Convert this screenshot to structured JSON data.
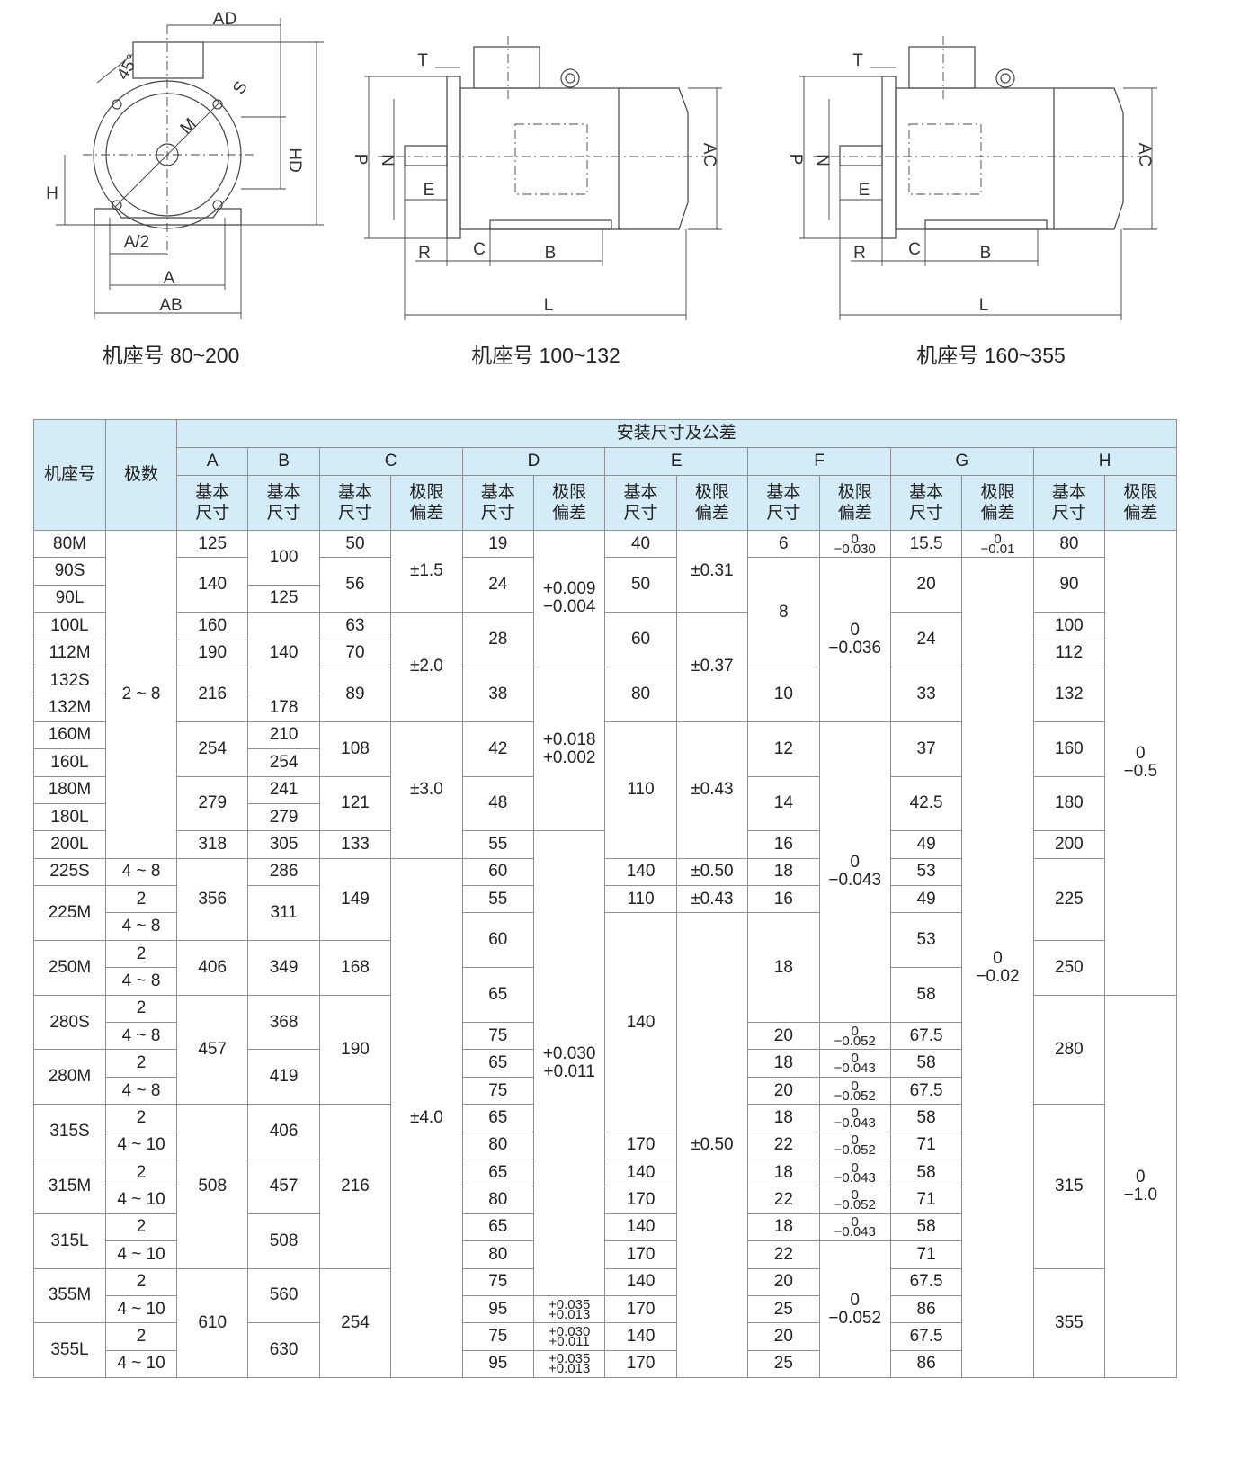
{
  "drawings": [
    {
      "caption": "机座号 80~200",
      "labels": [
        "AD",
        "45°",
        "S",
        "M",
        "HD",
        "H",
        "A/2",
        "A",
        "AB"
      ]
    },
    {
      "caption": "机座号 100~132",
      "labels": [
        "T",
        "P",
        "N",
        "E",
        "R",
        "C",
        "B",
        "L",
        "AC"
      ]
    },
    {
      "caption": "机座号 160~355",
      "labels": [
        "T",
        "P",
        "N",
        "E",
        "R",
        "C",
        "B",
        "L",
        "AC"
      ]
    }
  ],
  "table": {
    "title": "安装尺寸及公差",
    "frame": "机座号",
    "poles": "极数",
    "dims": [
      "A",
      "B",
      "C",
      "D",
      "E",
      "F",
      "G",
      "H"
    ],
    "basic": "基本尺寸",
    "tolerance": "极限偏差",
    "rows": [
      [
        "80M",
        "2 ~ 8",
        "125",
        "100",
        "50",
        "±1.5",
        "19",
        "+0.009\n−0.004",
        "40",
        "±0.31",
        "6",
        "0\n−0.030",
        "15.5",
        "0\n−0.01",
        "80",
        "0\n−0.5"
      ],
      [
        "90S",
        "140",
        "56",
        "24",
        "50",
        "8",
        "0\n−0.036",
        "20",
        "0\n−0.02",
        "90"
      ],
      [
        "90L",
        "125"
      ],
      [
        "100L",
        "160",
        "140",
        "63",
        "±2.0",
        "28",
        "60",
        "±0.37",
        "24",
        "100"
      ],
      [
        "112M",
        "190",
        "70",
        "112"
      ],
      [
        "132S",
        "216",
        "89",
        "38",
        "+0.018\n+0.002",
        "80",
        "10",
        "33",
        "132"
      ],
      [
        "132M",
        "178"
      ],
      [
        "160M",
        "254",
        "210",
        "108",
        "±3.0",
        "42",
        "110",
        "±0.43",
        "12",
        "0\n−0.043",
        "37",
        "160"
      ],
      [
        "160L",
        "254"
      ],
      [
        "180M",
        "279",
        "241",
        "121",
        "48",
        "14",
        "42.5",
        "180"
      ],
      [
        "180L",
        "279"
      ],
      [
        "200L",
        "318",
        "305",
        "133",
        "55",
        "+0.030\n+0.011",
        "16",
        "49",
        "200"
      ],
      [
        "225S",
        "4 ~ 8",
        "356",
        "286",
        "149",
        "±4.0",
        "60",
        "140",
        "±0.50",
        "18",
        "53",
        "225"
      ],
      [
        "225M",
        "2",
        "311",
        "55",
        "110",
        "±0.43",
        "16",
        "49"
      ],
      [
        "4 ~ 8",
        "60",
        "140",
        "±0.50",
        "18",
        "53"
      ],
      [
        "250M",
        "2",
        "406",
        "349",
        "168",
        "250"
      ],
      [
        "4 ~ 8",
        "65",
        "58"
      ],
      [
        "280S",
        "2",
        "457",
        "368",
        "190",
        "280",
        "0\n−1.0"
      ],
      [
        "4 ~ 8",
        "75",
        "20",
        "0\n−0.052",
        "67.5"
      ],
      [
        "280M",
        "2",
        "419",
        "65",
        "18",
        "0\n−0.043",
        "58"
      ],
      [
        "4 ~ 8",
        "75",
        "20",
        "0\n−0.052",
        "67.5"
      ],
      [
        "315S",
        "2",
        "508",
        "406",
        "216",
        "65",
        "18",
        "0\n−0.043",
        "58",
        "315"
      ],
      [
        "4 ~ 10",
        "80",
        "170",
        "22",
        "0\n−0.052",
        "71"
      ],
      [
        "315M",
        "2",
        "457",
        "65",
        "140",
        "18",
        "0\n−0.043",
        "58"
      ],
      [
        "4 ~ 10",
        "80",
        "170",
        "22",
        "0\n−0.052",
        "71"
      ],
      [
        "315L",
        "2",
        "508",
        "65",
        "140",
        "18",
        "0\n−0.043",
        "58"
      ],
      [
        "4 ~ 10",
        "80",
        "170",
        "22",
        "0\n−0.052",
        "71"
      ],
      [
        "355M",
        "2",
        "610",
        "560",
        "254",
        "75",
        "140",
        "20",
        "67.5",
        "355"
      ],
      [
        "4 ~ 10",
        "95",
        "+0.035\n+0.013",
        "170",
        "25",
        "86"
      ],
      [
        "355L",
        "2",
        "630",
        "75",
        "+0.030\n+0.011",
        "140",
        "20",
        "67.5"
      ],
      [
        "4 ~ 10",
        "95",
        "+0.035\n+0.013",
        "170",
        "25",
        "86"
      ]
    ]
  }
}
